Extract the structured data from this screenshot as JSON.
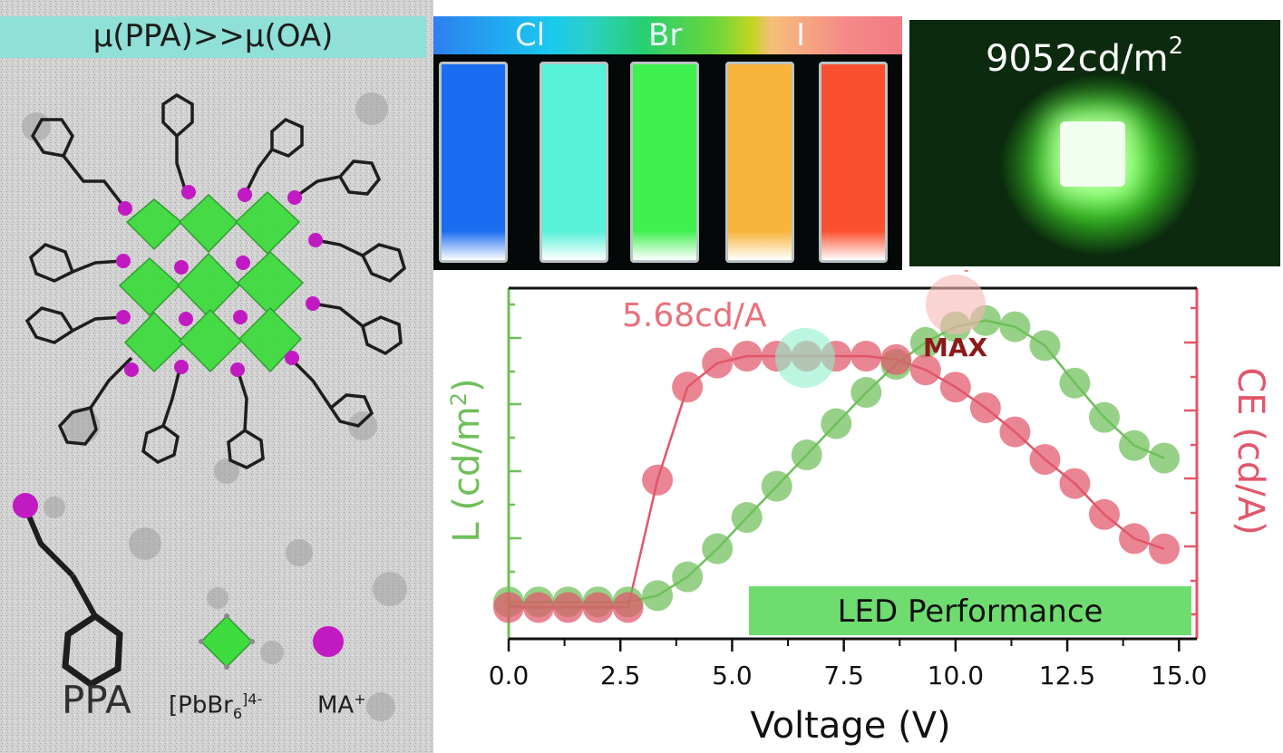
{
  "schematic": {
    "banner": "μ(PPA)>>μ(OA)",
    "ligand_label": "PPA",
    "octahedron_label": "[PbBr",
    "octahedron_sub": "6",
    "octahedron_sup": "]4-",
    "cation_label": "MA",
    "cation_sup": "+",
    "colors": {
      "octahedron": "#3fdc3f",
      "cation": "#c21ac2",
      "banner": "#8fe0d6"
    }
  },
  "photo": {
    "halides": [
      "Cl",
      "Br",
      "I"
    ],
    "cuvette_colors": [
      "#1a6cf0",
      "#57f0d9",
      "#3ff04f",
      "#f8b43a",
      "#fb5030"
    ]
  },
  "led_photo": {
    "value": "9052cd/m",
    "exponent": "2"
  },
  "annotations": {
    "ce_max": "5.68cd/A",
    "max_label": "MAX",
    "legend": "LED Performance"
  },
  "chart_data": {
    "type": "scatter",
    "title": "",
    "xlabel": "Voltage (V)",
    "ylabel_left": "L (cd/m",
    "ylabel_left_sup": "2",
    "ylabel_left_end": ")",
    "ylabel_right": "CE (cd/A)",
    "xlim": [
      0,
      15.4
    ],
    "ylim": [
      0,
      100
    ],
    "x_ticks": [
      "0.0",
      "2.5",
      "5.0",
      "7.5",
      "10.0",
      "12.5",
      "15.0"
    ],
    "x_tick_values": [
      0,
      2.5,
      5,
      7.5,
      10,
      12.5,
      15
    ],
    "series": [
      {
        "name": "L",
        "color": "#6fbf5a",
        "axis": "left",
        "x": [
          0.0,
          0.67,
          1.33,
          2.0,
          2.67,
          3.33,
          4.0,
          4.67,
          5.33,
          6.0,
          6.67,
          7.33,
          8.0,
          8.67,
          9.33,
          10.0,
          10.67,
          11.33,
          12.0,
          12.67,
          13.33,
          14.0,
          14.67
        ],
        "values": [
          4,
          4,
          4,
          4,
          4,
          6,
          12,
          21,
          31,
          41,
          51,
          61,
          71,
          80,
          87,
          92,
          94,
          92,
          86,
          74,
          63,
          54,
          50
        ]
      },
      {
        "name": "CE",
        "color": "#e2566a",
        "axis": "right",
        "x": [
          0.0,
          0.67,
          1.33,
          2.0,
          2.67,
          3.33,
          4.0,
          4.67,
          5.33,
          6.0,
          6.67,
          7.33,
          8.0,
          8.67,
          9.33,
          10.0,
          10.67,
          11.33,
          12.0,
          12.67,
          13.33,
          14.0,
          14.67
        ],
        "values": [
          2,
          2,
          2,
          2,
          2,
          39,
          66,
          73,
          75,
          75,
          75,
          75,
          75,
          74,
          71,
          66,
          60,
          53,
          45,
          38,
          29,
          22,
          19
        ]
      }
    ]
  }
}
